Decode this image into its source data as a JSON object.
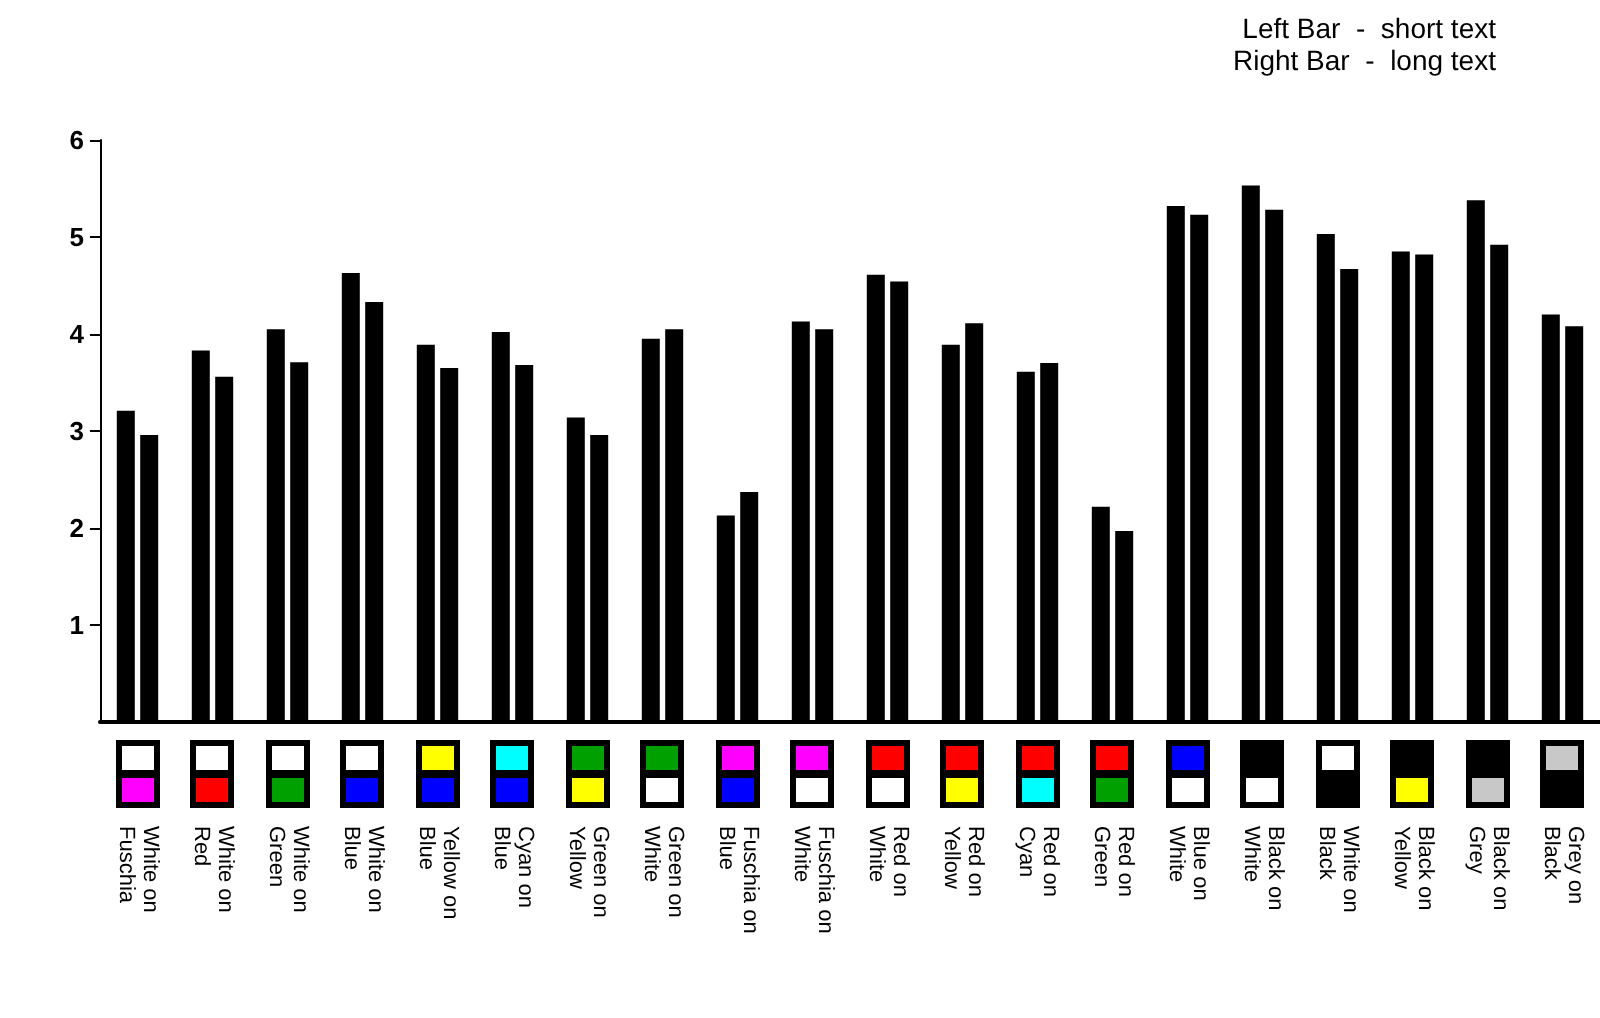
{
  "chart_data": {
    "type": "bar",
    "categories": [
      "White on\nFuschia",
      "White on\nRed",
      "White on\nGreen",
      "White on\nBlue",
      "Yellow on\nBlue",
      "Cyan on\nBlue",
      "Green on\nYellow",
      "Green on\nWhite",
      "Fuschia on\nBlue",
      "Fuschia on\nWhite",
      "Red on\nWhite",
      "Red on\nYellow",
      "Red on\nCyan",
      "Red on\nGreen",
      "Blue on\nWhite",
      "Black on\nWhite",
      "White on\nBlack",
      "Black on\nYellow",
      "Black on\nGrey",
      "Grey on\nBlack"
    ],
    "series": [
      {
        "color": "#000000",
        "values": [
          3.21,
          3.83,
          4.05,
          4.63,
          3.89,
          4.02,
          3.14,
          3.95,
          2.13,
          4.13,
          4.61,
          3.89,
          3.61,
          2.22,
          5.32,
          5.53,
          5.03,
          4.85,
          5.38,
          4.2
        ]
      },
      {
        "color": "#000000",
        "values": [
          2.96,
          3.56,
          3.71,
          4.33,
          3.65,
          3.68,
          2.96,
          4.05,
          2.37,
          4.05,
          4.54,
          4.11,
          3.7,
          1.97,
          5.23,
          5.28,
          4.67,
          4.82,
          4.92,
          4.08
        ]
      }
    ],
    "ylim": [
      0,
      6
    ],
    "yticks": [
      1,
      2,
      3,
      4,
      5,
      6
    ],
    "annotations": [
      "Left Bar  -  short text",
      "Right Bar  -  long text"
    ],
    "grid": false
  }
}
